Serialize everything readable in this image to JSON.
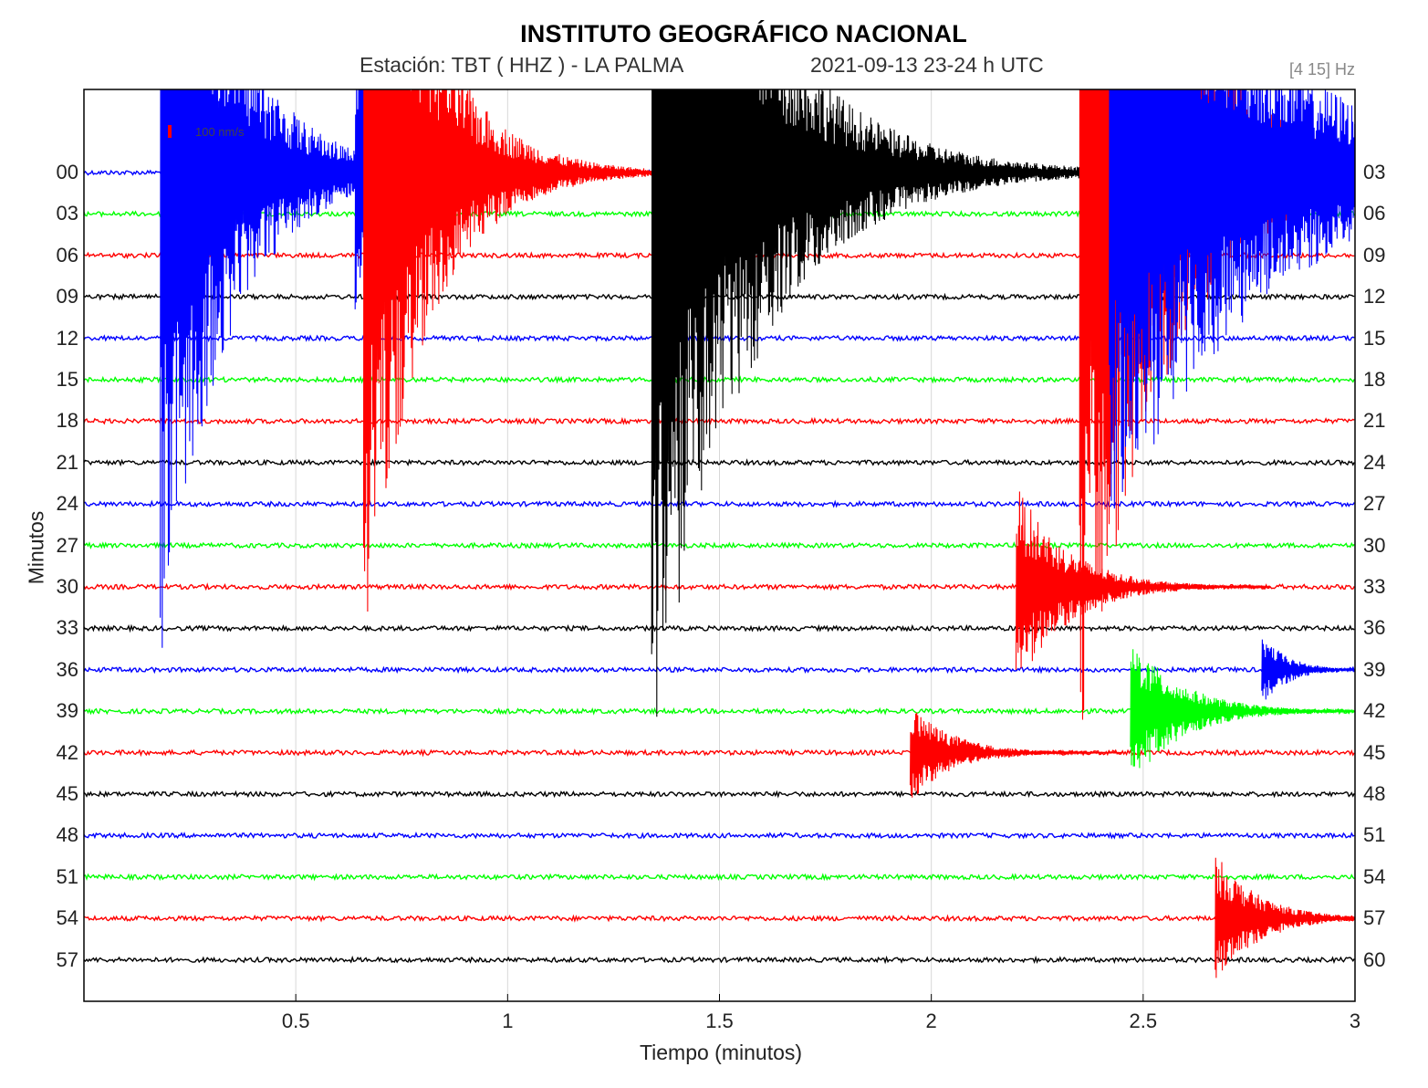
{
  "header": {
    "title": "INSTITUTO GEOGRÁFICO NACIONAL",
    "station": "Estación:  TBT ( HHZ ) - LA PALMA",
    "datetime": "2021-09-13  23-24 h UTC",
    "band": "[4 15] Hz"
  },
  "scale_label": "100 nm/s",
  "chart_data": {
    "type": "line",
    "title": "INSTITUTO GEOGRÁFICO NACIONAL",
    "xlabel": "Tiempo (minutos)",
    "ylabel": "Minutos",
    "xlim": [
      0,
      3
    ],
    "x_ticks": [
      "0.5",
      "1",
      "1.5",
      "2",
      "2.5",
      "3"
    ],
    "x_tick_values": [
      0.5,
      1,
      1.5,
      2,
      2.5,
      3
    ],
    "y_ticks_left": [
      "00",
      "03",
      "06",
      "09",
      "12",
      "15",
      "18",
      "21",
      "24",
      "27",
      "30",
      "33",
      "36",
      "39",
      "42",
      "45",
      "48",
      "51",
      "54",
      "57"
    ],
    "y_ticks_right": [
      "03",
      "06",
      "09",
      "12",
      "15",
      "18",
      "21",
      "24",
      "27",
      "30",
      "33",
      "36",
      "39",
      "42",
      "45",
      "48",
      "51",
      "54",
      "57",
      "60"
    ],
    "grid": "vertical",
    "trace_colors": [
      "#0000ff",
      "#00ff00",
      "#ff0000",
      "#000000"
    ],
    "events": [
      {
        "t": 0.18,
        "trace": 0,
        "amp": 12,
        "decay": 0.15,
        "color": "#0000ff"
      },
      {
        "t": 0.64,
        "trace": 0,
        "amp": 3.5,
        "decay": 0.1,
        "color": "#0000ff"
      },
      {
        "t": 0.66,
        "trace": 0,
        "amp": 12,
        "decay": 0.14,
        "color": "#ff0000"
      },
      {
        "t": 1.34,
        "trace": 0,
        "amp": 14,
        "decay": 0.22,
        "color": "#000000"
      },
      {
        "t": 2.35,
        "trace": 0,
        "amp": 14,
        "decay": 0.2,
        "color": "#ff0000"
      },
      {
        "t": 2.42,
        "trace": 0,
        "amp": 9,
        "decay": 0.35,
        "color": "#0000ff"
      },
      {
        "t": 2.2,
        "trace": 10,
        "amp": 2.5,
        "decay": 0.12,
        "color": "#ff0000"
      },
      {
        "t": 2.47,
        "trace": 13,
        "amp": 1.8,
        "decay": 0.12,
        "color": "#00ff00"
      },
      {
        "t": 2.67,
        "trace": 18,
        "amp": 1.6,
        "decay": 0.1,
        "color": "#ff0000"
      },
      {
        "t": 1.95,
        "trace": 14,
        "amp": 1.2,
        "decay": 0.1,
        "color": "#ff0000"
      },
      {
        "t": 2.78,
        "trace": 12,
        "amp": 0.9,
        "decay": 0.06,
        "color": "#0000ff"
      }
    ]
  }
}
